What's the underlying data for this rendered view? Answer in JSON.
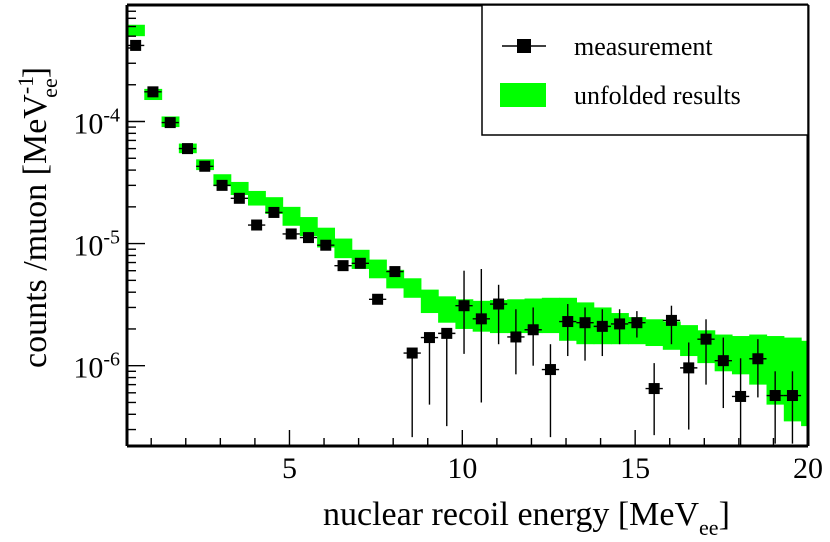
{
  "chart_data": {
    "type": "scatter",
    "xlabel": "nuclear recoil energy [MeV",
    "xlabel_sub": "ee",
    "xlabel_end": "]",
    "ylabel": "counts /muon [MeV",
    "ylabel_sup": "-1",
    "ylabel_sub": "ee",
    "ylabel_end": "]",
    "xlim": [
      0.3,
      20
    ],
    "ylim": [
      2.2e-07,
      0.0009
    ],
    "yscale": "log",
    "x_ticks": [
      {
        "value": 5,
        "label": "5"
      },
      {
        "value": 10,
        "label": "10"
      },
      {
        "value": 15,
        "label": "15"
      },
      {
        "value": 20,
        "label": "20"
      }
    ],
    "y_ticks": [
      {
        "value": 0.0001,
        "base": "10",
        "exp": "-4"
      },
      {
        "value": 1e-05,
        "base": "10",
        "exp": "-5"
      },
      {
        "value": 1e-06,
        "base": "10",
        "exp": "-6"
      }
    ],
    "legend": {
      "position": "top-right",
      "entries": [
        {
          "label": "measurement",
          "marker": "square-errorbar"
        },
        {
          "label": "unfolded results",
          "marker": "green-band"
        }
      ]
    },
    "series": [
      {
        "name": "measurement",
        "color": "#000000",
        "bin_half_width": 0.25,
        "points": [
          {
            "x": 0.55,
            "y": 0.00042
          },
          {
            "x": 1.05,
            "y": 0.000175
          },
          {
            "x": 1.55,
            "y": 9.8e-05
          },
          {
            "x": 2.05,
            "y": 6e-05
          },
          {
            "x": 2.55,
            "y": 4.3e-05
          },
          {
            "x": 3.05,
            "y": 3e-05
          },
          {
            "x": 3.55,
            "y": 2.35e-05
          },
          {
            "x": 4.05,
            "y": 1.42e-05
          },
          {
            "x": 4.55,
            "y": 1.8e-05
          },
          {
            "x": 5.05,
            "y": 1.2e-05
          },
          {
            "x": 5.55,
            "y": 1.12e-05
          },
          {
            "x": 6.05,
            "y": 9.7e-06
          },
          {
            "x": 6.55,
            "y": 6.6e-06
          },
          {
            "x": 7.05,
            "y": 6.9e-06
          },
          {
            "x": 7.55,
            "y": 3.5e-06
          },
          {
            "x": 8.05,
            "y": 5.9e-06
          },
          {
            "x": 8.55,
            "y": 1.27e-06,
            "err_lo": 2.6e-07
          },
          {
            "x": 9.05,
            "y": 1.7e-06,
            "err_lo": 4.8e-07
          },
          {
            "x": 9.55,
            "y": 1.84e-06,
            "err_lo": 3.2e-07
          },
          {
            "x": 10.05,
            "y": 3.1e-06,
            "err_lo": 1.25e-06,
            "err_hi": 6e-06
          },
          {
            "x": 10.55,
            "y": 2.42e-06,
            "err_lo": 5e-07,
            "err_hi": 6.2e-06
          },
          {
            "x": 11.05,
            "y": 3.2e-06,
            "err_lo": 1.5e-06,
            "err_hi": 4.6e-06
          },
          {
            "x": 11.55,
            "y": 1.72e-06,
            "err_lo": 8.5e-07,
            "err_hi": 2.9e-06
          },
          {
            "x": 12.05,
            "y": 1.97e-06,
            "err_lo": 1e-06,
            "err_hi": 3e-06
          },
          {
            "x": 12.55,
            "y": 9.3e-07,
            "err_lo": 2.6e-07,
            "err_hi": 1.5e-06
          },
          {
            "x": 13.05,
            "y": 2.3e-06,
            "err_lo": 1.2e-06,
            "err_hi": 3.2e-06
          },
          {
            "x": 13.55,
            "y": 2.25e-06,
            "err_lo": 1.1e-06,
            "err_hi": 3e-06
          },
          {
            "x": 14.05,
            "y": 2.1e-06,
            "err_lo": 1.2e-06,
            "err_hi": 2.9e-06
          },
          {
            "x": 14.55,
            "y": 2.2e-06,
            "err_lo": 1.5e-06,
            "err_hi": 2.9e-06
          },
          {
            "x": 15.05,
            "y": 2.25e-06,
            "err_lo": 1.7e-06,
            "err_hi": 2.8e-06
          },
          {
            "x": 15.55,
            "y": 6.5e-07,
            "err_lo": 2.7e-07,
            "err_hi": 1.05e-06
          },
          {
            "x": 16.05,
            "y": 2.35e-06,
            "err_lo": 1.5e-06,
            "err_hi": 3.1e-06
          },
          {
            "x": 16.55,
            "y": 9.6e-07,
            "err_lo": 3e-07,
            "err_hi": 1.55e-06
          },
          {
            "x": 17.05,
            "y": 1.65e-06,
            "err_lo": 7e-07,
            "err_hi": 2.4e-06
          },
          {
            "x": 17.55,
            "y": 1.1e-06,
            "err_lo": 4.5e-07,
            "err_hi": 1.7e-06
          },
          {
            "x": 18.05,
            "y": 5.6e-07,
            "err_lo": 2.2e-07,
            "err_hi": 1.15e-06
          },
          {
            "x": 18.55,
            "y": 1.14e-06,
            "err_lo": 5.5e-07,
            "err_hi": 1.65e-06
          },
          {
            "x": 19.05,
            "y": 5.7e-07,
            "err_lo": 2.3e-07,
            "err_hi": 9e-07
          },
          {
            "x": 19.55,
            "y": 5.7e-07,
            "err_lo": 2.3e-07,
            "err_hi": 9e-07
          }
        ]
      },
      {
        "name": "unfolded results",
        "color": "#00ff00",
        "type": "band",
        "bins": [
          {
            "x0": 0.3,
            "x1": 0.8,
            "lo": 0.0005,
            "hi": 0.00062
          },
          {
            "x0": 0.8,
            "x1": 1.3,
            "lo": 0.00015,
            "hi": 0.000185
          },
          {
            "x0": 1.3,
            "x1": 1.8,
            "lo": 9e-05,
            "hi": 0.00011
          },
          {
            "x0": 1.8,
            "x1": 2.3,
            "lo": 5.5e-05,
            "hi": 6.6e-05
          },
          {
            "x0": 2.3,
            "x1": 2.8,
            "lo": 4e-05,
            "hi": 4.9e-05
          },
          {
            "x0": 2.8,
            "x1": 3.3,
            "lo": 2.95e-05,
            "hi": 3.7e-05
          },
          {
            "x0": 3.3,
            "x1": 3.8,
            "lo": 2.5e-05,
            "hi": 3.2e-05
          },
          {
            "x0": 3.8,
            "x1": 4.3,
            "lo": 2.05e-05,
            "hi": 2.7e-05
          },
          {
            "x0": 4.3,
            "x1": 4.8,
            "lo": 1.75e-05,
            "hi": 2.4e-05
          },
          {
            "x0": 4.8,
            "x1": 5.3,
            "lo": 1.4e-05,
            "hi": 2e-05
          },
          {
            "x0": 5.3,
            "x1": 5.8,
            "lo": 1.15e-05,
            "hi": 1.65e-05
          },
          {
            "x0": 5.8,
            "x1": 6.3,
            "lo": 9.3e-06,
            "hi": 1.35e-05
          },
          {
            "x0": 6.3,
            "x1": 6.8,
            "lo": 7.6e-06,
            "hi": 1.1e-05
          },
          {
            "x0": 6.8,
            "x1": 7.3,
            "lo": 6.2e-06,
            "hi": 8.9e-06
          },
          {
            "x0": 7.3,
            "x1": 7.8,
            "lo": 5.2e-06,
            "hi": 7.4e-06
          },
          {
            "x0": 7.8,
            "x1": 8.3,
            "lo": 4.3e-06,
            "hi": 6.1e-06
          },
          {
            "x0": 8.3,
            "x1": 8.8,
            "lo": 3.6e-06,
            "hi": 5.2e-06
          },
          {
            "x0": 8.8,
            "x1": 9.3,
            "lo": 2.7e-06,
            "hi": 4.2e-06
          },
          {
            "x0": 9.3,
            "x1": 9.8,
            "lo": 2.25e-06,
            "hi": 3.7e-06
          },
          {
            "x0": 9.8,
            "x1": 10.3,
            "lo": 2e-06,
            "hi": 3.5e-06
          },
          {
            "x0": 10.3,
            "x1": 10.8,
            "lo": 1.9e-06,
            "hi": 3.4e-06
          },
          {
            "x0": 10.8,
            "x1": 11.3,
            "lo": 1.85e-06,
            "hi": 3.45e-06
          },
          {
            "x0": 11.3,
            "x1": 11.8,
            "lo": 1.85e-06,
            "hi": 3.5e-06
          },
          {
            "x0": 11.8,
            "x1": 12.3,
            "lo": 1.85e-06,
            "hi": 3.55e-06
          },
          {
            "x0": 12.3,
            "x1": 12.8,
            "lo": 1.85e-06,
            "hi": 3.6e-06
          },
          {
            "x0": 12.8,
            "x1": 13.3,
            "lo": 1.6e-06,
            "hi": 3.6e-06
          },
          {
            "x0": 13.3,
            "x1": 13.8,
            "lo": 1.5e-06,
            "hi": 3.3e-06
          },
          {
            "x0": 13.8,
            "x1": 14.3,
            "lo": 1.5e-06,
            "hi": 3e-06
          },
          {
            "x0": 14.3,
            "x1": 14.8,
            "lo": 1.5e-06,
            "hi": 2.7e-06
          },
          {
            "x0": 14.8,
            "x1": 15.3,
            "lo": 1.5e-06,
            "hi": 2.5e-06
          },
          {
            "x0": 15.3,
            "x1": 15.8,
            "lo": 1.45e-06,
            "hi": 2.4e-06
          },
          {
            "x0": 15.8,
            "x1": 16.3,
            "lo": 1.35e-06,
            "hi": 2.3e-06
          },
          {
            "x0": 16.3,
            "x1": 16.8,
            "lo": 1.2e-06,
            "hi": 2.15e-06
          },
          {
            "x0": 16.8,
            "x1": 17.3,
            "lo": 1.05e-06,
            "hi": 1.95e-06
          },
          {
            "x0": 17.3,
            "x1": 17.8,
            "lo": 9e-07,
            "hi": 1.8e-06
          },
          {
            "x0": 17.8,
            "x1": 18.3,
            "lo": 8.5e-07,
            "hi": 1.75e-06
          },
          {
            "x0": 18.3,
            "x1": 18.8,
            "lo": 7e-07,
            "hi": 1.8e-06
          },
          {
            "x0": 18.8,
            "x1": 19.3,
            "lo": 4.8e-07,
            "hi": 1.75e-06
          },
          {
            "x0": 19.3,
            "x1": 19.8,
            "lo": 3.5e-07,
            "hi": 1.7e-06
          },
          {
            "x0": 19.8,
            "x1": 20.0,
            "lo": 3.2e-07,
            "hi": 1.6e-06
          }
        ]
      }
    ]
  }
}
